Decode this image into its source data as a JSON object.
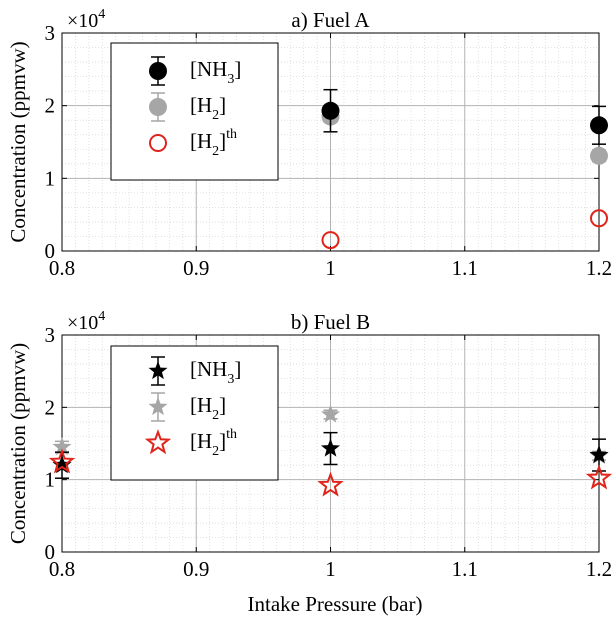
{
  "figure": {
    "xlabel": "Intake Pressure (bar)"
  },
  "colors": {
    "nh3": "#000000",
    "h2": "#a6a6a6",
    "h2th": "#e0231b"
  },
  "chart_data": [
    {
      "type": "scatter",
      "title": "a) Fuel A",
      "ylabel": "Concentration (ppmvw)",
      "multiplier": "×10",
      "multiplier_exp": "4",
      "xlim": [
        0.8,
        1.2
      ],
      "ylim": [
        0,
        30000
      ],
      "xticks": [
        "0.8",
        "0.9",
        "1",
        "1.1",
        "1.2"
      ],
      "yticks": [
        "0",
        "1",
        "2",
        "3"
      ],
      "grid": true,
      "legend_position": "top-left",
      "marker": "circle",
      "series": [
        {
          "key": "nh3",
          "legend_main": "[NH",
          "legend_sub": "3",
          "legend_end": "]",
          "legend_sup": "",
          "points": [
            {
              "x": 1.0,
              "y": 19300,
              "err": 2900
            },
            {
              "x": 1.2,
              "y": 17300,
              "err": 2600
            }
          ]
        },
        {
          "key": "h2",
          "legend_main": "[H",
          "legend_sub": "2",
          "legend_end": "]",
          "legend_sup": "",
          "points": [
            {
              "x": 1.0,
              "y": 18500,
              "err": 800
            },
            {
              "x": 1.2,
              "y": 13100,
              "err": 800
            }
          ]
        },
        {
          "key": "h2th",
          "legend_main": "[H",
          "legend_sub": "2",
          "legend_end": "]",
          "legend_sup": "th",
          "points": [
            {
              "x": 1.0,
              "y": 1500
            },
            {
              "x": 1.2,
              "y": 4500
            }
          ]
        }
      ]
    },
    {
      "type": "scatter",
      "title": "b) Fuel B",
      "ylabel": "Concentration (ppmvw)",
      "multiplier": "×10",
      "multiplier_exp": "4",
      "xlim": [
        0.8,
        1.2
      ],
      "ylim": [
        0,
        30000
      ],
      "xticks": [
        "0.8",
        "0.9",
        "1",
        "1.1",
        "1.2"
      ],
      "yticks": [
        "0",
        "1",
        "2",
        "3"
      ],
      "grid": true,
      "legend_position": "top-left",
      "marker": "star",
      "series": [
        {
          "key": "nh3",
          "legend_main": "[NH",
          "legend_sub": "3",
          "legend_end": "]",
          "legend_sup": "",
          "points": [
            {
              "x": 0.8,
              "y": 12000,
              "err": 1800
            },
            {
              "x": 1.0,
              "y": 14300,
              "err": 2200
            },
            {
              "x": 1.2,
              "y": 13400,
              "err": 2200
            }
          ]
        },
        {
          "key": "h2",
          "legend_main": "[H",
          "legend_sub": "2",
          "legend_end": "]",
          "legend_sup": "",
          "points": [
            {
              "x": 0.8,
              "y": 14500,
              "err": 800
            },
            {
              "x": 1.0,
              "y": 19000,
              "err": 600
            },
            {
              "x": 1.2,
              "y": 13300,
              "err": 600
            }
          ]
        },
        {
          "key": "h2th",
          "legend_main": "[H",
          "legend_sub": "2",
          "legend_end": "]",
          "legend_sup": "th",
          "points": [
            {
              "x": 0.8,
              "y": 12400
            },
            {
              "x": 1.0,
              "y": 9200
            },
            {
              "x": 1.2,
              "y": 10200
            }
          ]
        }
      ]
    }
  ]
}
